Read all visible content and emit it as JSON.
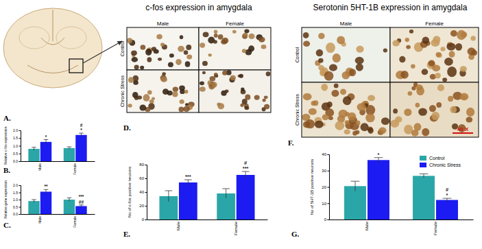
{
  "images": {
    "A": {
      "panel": "A."
    },
    "D": {
      "panel": "D.",
      "title": "c-fos expression in amygdala",
      "columns": [
        "Male",
        "Female"
      ],
      "rows": [
        "Control",
        "Chronic Stress"
      ]
    },
    "F": {
      "panel": "F.",
      "title": "Serotonin 5HT-1B expression in amygdala",
      "columns": [
        "Male",
        "Female"
      ],
      "rows": [
        "Control",
        "Chronic Stress"
      ],
      "scale_bar": "40 X"
    }
  },
  "chart_data": [
    {
      "type": "bar",
      "panel": "B.",
      "y_label": "Relative c-fos expression",
      "categories": [
        "Male",
        "Female"
      ],
      "series": [
        {
          "color": "#2ba6a8",
          "values": [
            0.8,
            0.85
          ],
          "errors": [
            0.1,
            0.08
          ]
        },
        {
          "color": "#1b1bf2",
          "values": [
            1.25,
            1.7
          ],
          "errors": [
            0.15,
            0.12
          ],
          "annotations": [
            [
              "*"
            ],
            [
              "#",
              "*"
            ]
          ]
        }
      ],
      "ylim": [
        0,
        2
      ],
      "yticks": [
        {
          "value": 0,
          "label": "0.0"
        },
        {
          "value": 0.5,
          "label": "0.5"
        },
        {
          "value": 1,
          "label": "1.0"
        },
        {
          "value": 1.5,
          "label": "1.5"
        },
        {
          "value": 2,
          "label": "2.0"
        }
      ]
    },
    {
      "type": "bar",
      "panel": "C.",
      "y_label": "Relative gene expression",
      "categories": [
        "Male",
        "Female"
      ],
      "series": [
        {
          "color": "#2ba6a8",
          "values": [
            0.9,
            1.0
          ],
          "errors": [
            0.1,
            0.12
          ]
        },
        {
          "color": "#1b1bf2",
          "values": [
            1.55,
            0.55
          ],
          "errors": [
            0.15,
            0.08
          ],
          "annotations": [
            [
              "**"
            ],
            [
              "***",
              "##"
            ]
          ]
        }
      ],
      "ylim": [
        0,
        2
      ],
      "yticks": [
        {
          "value": 0,
          "label": "0.0"
        },
        {
          "value": 0.5,
          "label": "0.5"
        },
        {
          "value": 1,
          "label": "1.0"
        },
        {
          "value": 1.5,
          "label": "1.5"
        },
        {
          "value": 2,
          "label": "2.0"
        }
      ]
    },
    {
      "type": "bar",
      "panel": "E.",
      "y_label": "No of c-fos positive neurons",
      "categories": [
        "Male",
        "Female"
      ],
      "series": [
        {
          "color": "#2ba6a8",
          "values": [
            34,
            38
          ],
          "errors": [
            8,
            7
          ]
        },
        {
          "color": "#1b1bf2",
          "values": [
            54,
            65
          ],
          "errors": [
            4,
            5
          ],
          "annotations": [
            [
              "***"
            ],
            [
              "#",
              "***"
            ]
          ]
        }
      ],
      "ylim": [
        0,
        80
      ],
      "yticks": [
        0,
        20,
        40,
        60,
        80
      ]
    },
    {
      "type": "bar",
      "panel": "G.",
      "y_label": "No of 5HT-1B positive neurons",
      "categories": [
        "Male",
        "Female"
      ],
      "series": [
        {
          "name": "Control",
          "color": "#2ba6a8",
          "values": [
            20.5,
            26.8
          ],
          "errors": [
            3,
            1.2
          ]
        },
        {
          "name": "Chronic Stress",
          "color": "#1b1bf2",
          "values": [
            36.5,
            12
          ],
          "errors": [
            1.5,
            1
          ],
          "annotations": [
            [
              "*"
            ],
            [
              "#",
              "*"
            ]
          ]
        }
      ],
      "ylim": [
        0,
        40
      ],
      "yticks": [
        0,
        10,
        20,
        30,
        40
      ],
      "legend": "top-right"
    }
  ]
}
